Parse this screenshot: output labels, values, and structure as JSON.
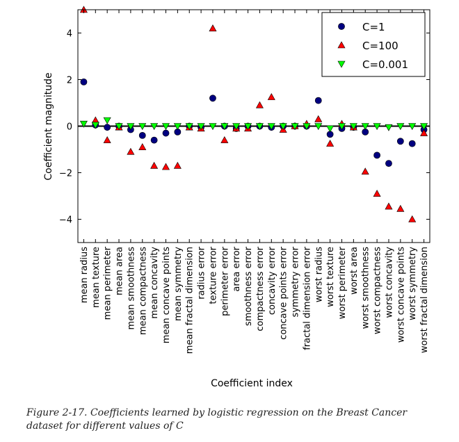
{
  "caption": "Figure 2-17. Coefficients learned by logistic regression on the Breast Cancer dataset for different values of C",
  "chart_data": {
    "type": "scatter",
    "xlabel": "Coefficient index",
    "ylabel": "Coefficient magnitude",
    "ylim": [
      -5,
      5
    ],
    "yticks": [
      -4,
      -2,
      0,
      2,
      4
    ],
    "ytick_labels": [
      "−4",
      "−2",
      "0",
      "2",
      "4"
    ],
    "hline_y": 0,
    "legend_position": "top-right",
    "categories": [
      "mean radius",
      "mean texture",
      "mean perimeter",
      "mean area",
      "mean smoothness",
      "mean compactness",
      "mean concavity",
      "mean concave points",
      "mean symmetry",
      "mean fractal dimension",
      "radius error",
      "texture error",
      "perimeter error",
      "area error",
      "smoothness error",
      "compactness error",
      "concavity error",
      "concave points error",
      "symmetry error",
      "fractal dimension error",
      "worst radius",
      "worst texture",
      "worst perimeter",
      "worst area",
      "worst smoothness",
      "worst compactness",
      "worst concavity",
      "worst concave points",
      "worst symmetry",
      "worst fractal dimension"
    ],
    "series": [
      {
        "name": "C=1",
        "marker": "circle",
        "color": "#000080",
        "values": [
          1.9,
          0.05,
          -0.05,
          0.0,
          -0.15,
          -0.4,
          -0.6,
          -0.3,
          -0.25,
          0.0,
          -0.05,
          1.2,
          0.0,
          -0.1,
          0.0,
          0.0,
          -0.05,
          0.0,
          0.0,
          0.0,
          1.1,
          -0.35,
          -0.1,
          -0.05,
          -0.25,
          -1.25,
          -1.6,
          -0.65,
          -0.75,
          -0.15
        ]
      },
      {
        "name": "C=100",
        "marker": "triangle-up",
        "color": "#ff0000",
        "values": [
          5.0,
          0.25,
          -0.6,
          -0.05,
          -1.1,
          -0.9,
          -1.7,
          -1.75,
          -1.7,
          -0.05,
          -0.1,
          4.2,
          -0.6,
          -0.1,
          -0.1,
          0.9,
          1.25,
          -0.15,
          0.0,
          0.1,
          0.3,
          -0.75,
          0.1,
          -0.05,
          -1.95,
          -2.9,
          -3.45,
          -3.55,
          -4.0,
          -0.3
        ]
      },
      {
        "name": "C=0.001",
        "marker": "triangle-down",
        "color": "#00ff00",
        "values": [
          0.1,
          0.05,
          0.25,
          0.0,
          0.0,
          0.0,
          0.0,
          0.0,
          0.0,
          0.0,
          0.0,
          0.0,
          0.0,
          0.0,
          0.0,
          0.0,
          0.0,
          0.0,
          0.0,
          0.0,
          0.0,
          -0.1,
          0.0,
          0.0,
          0.0,
          0.0,
          -0.05,
          0.0,
          0.0,
          0.0
        ]
      }
    ]
  }
}
